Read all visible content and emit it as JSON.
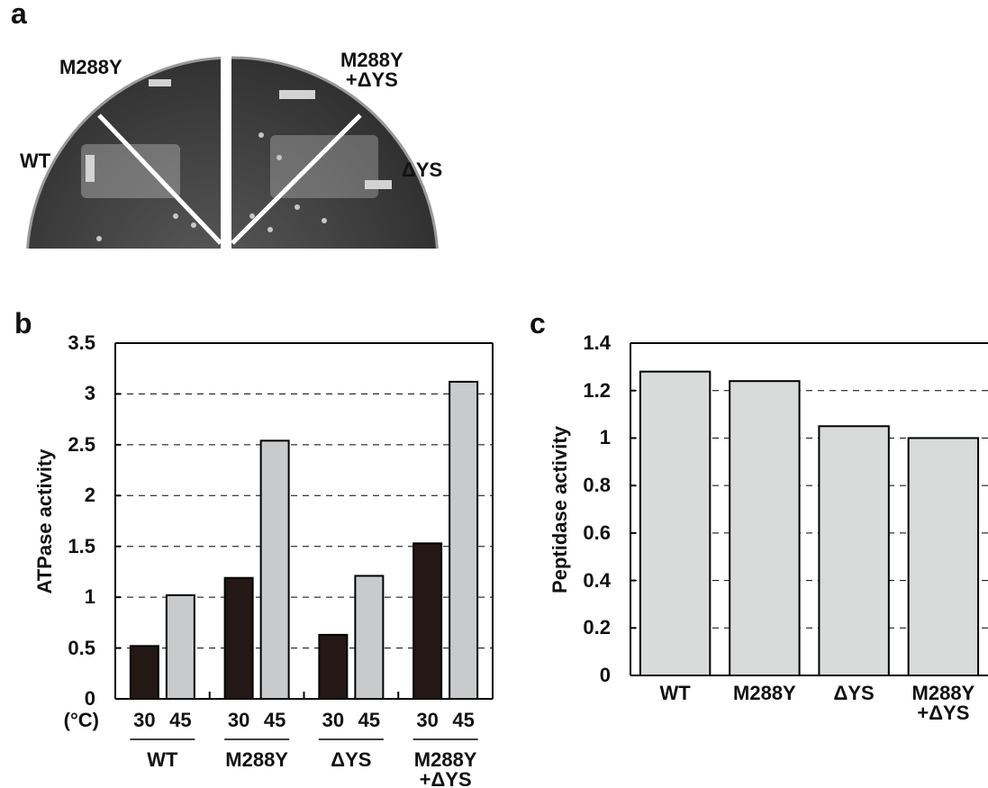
{
  "panel_a": {
    "label": "a",
    "labels": [
      "M288Y",
      "M288Y\n+ΔYS",
      "WT",
      "ΔYS"
    ]
  },
  "chart_data": [
    {
      "type": "bar",
      "label": "b",
      "ylabel": "ATPase activity",
      "x_unit_label": "(°C)",
      "categories": [
        "WT",
        "M288Y",
        "ΔYS",
        "M288Y\n+ΔYS"
      ],
      "series": [
        {
          "name": "30",
          "color": "#231815",
          "values": [
            0.52,
            1.19,
            0.63,
            1.53
          ]
        },
        {
          "name": "45",
          "color": "#c8cacb",
          "values": [
            1.02,
            2.54,
            1.21,
            3.12
          ]
        }
      ],
      "ylim": [
        0,
        3.5
      ],
      "yticks": [
        0,
        0.5,
        1,
        1.5,
        2,
        2.5,
        3,
        3.5
      ],
      "grid": true
    },
    {
      "type": "bar",
      "label": "c",
      "ylabel": "Peptidase activity",
      "categories": [
        "WT",
        "M288Y",
        "ΔYS",
        "M288Y\n+ΔYS"
      ],
      "values": [
        1.28,
        1.24,
        1.05,
        1.0
      ],
      "color": "#d9dbdb",
      "ylim": [
        0,
        1.4
      ],
      "yticks": [
        0,
        0.2,
        0.4,
        0.6,
        0.8,
        1,
        1.2,
        1.4
      ],
      "grid": true
    }
  ]
}
